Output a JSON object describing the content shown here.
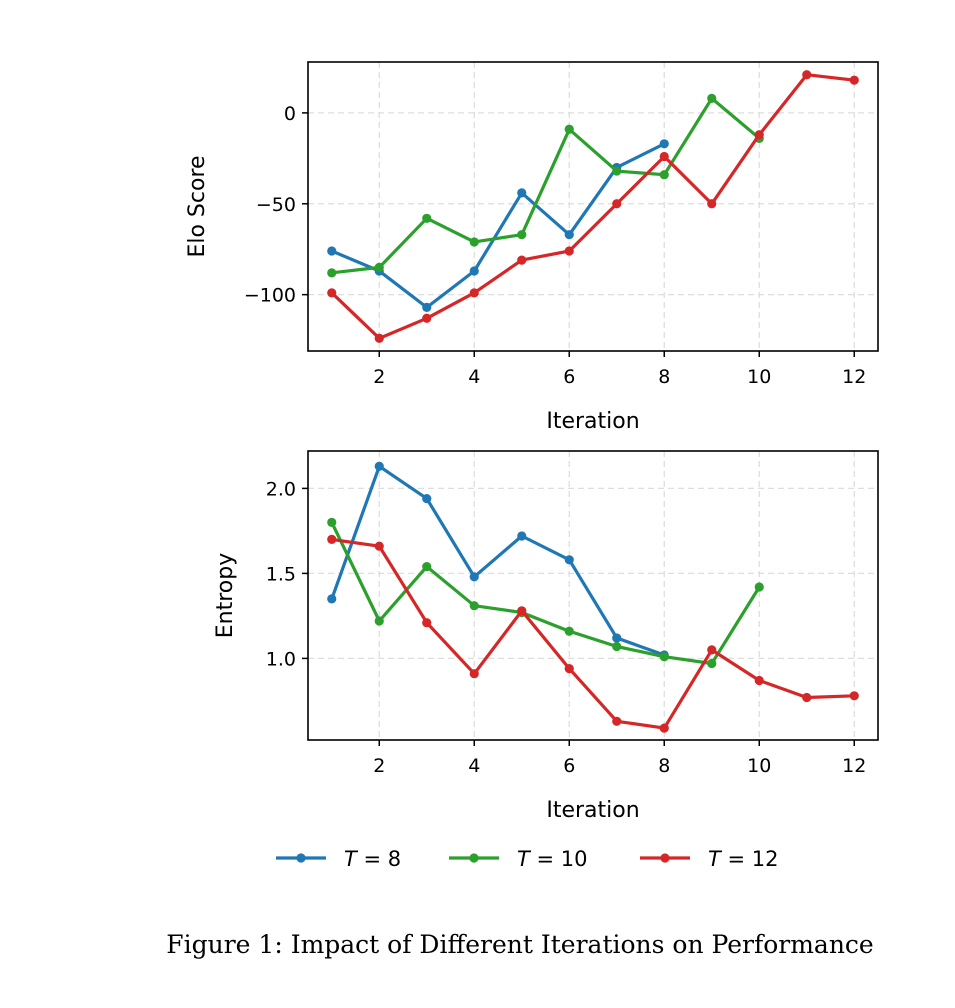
{
  "caption": "Figure 1: Impact of Different Iterations on Performance",
  "colors": {
    "T8": "#1f77b4",
    "T10": "#2ca02c",
    "T12": "#d62728"
  },
  "legend": [
    {
      "symbol": "T",
      "text": " = 8",
      "color": "#1f77b4"
    },
    {
      "symbol": "T",
      "text": " = 10",
      "color": "#2ca02c"
    },
    {
      "symbol": "T",
      "text": " = 12",
      "color": "#d62728"
    }
  ],
  "chart_data": [
    {
      "type": "line",
      "title": "",
      "xlabel": "Iteration",
      "ylabel": "Elo Score",
      "xlim": [
        0.5,
        12.5
      ],
      "ylim": [
        -131,
        28
      ],
      "xticks": [
        2,
        4,
        6,
        8,
        10,
        12
      ],
      "xtick_labels": [
        "2",
        "4",
        "6",
        "8",
        "10",
        "12"
      ],
      "yticks": [
        0,
        -50,
        -100
      ],
      "ytick_labels": [
        "0",
        "−50",
        "−100"
      ],
      "grid": true,
      "series": [
        {
          "name": "T = 8",
          "color": "#1f77b4",
          "x": [
            1,
            2,
            3,
            4,
            5,
            6,
            7,
            8
          ],
          "y": [
            -76,
            -87,
            -107,
            -87,
            -44,
            -67,
            -30,
            -17
          ]
        },
        {
          "name": "T = 10",
          "color": "#2ca02c",
          "x": [
            1,
            2,
            3,
            4,
            5,
            6,
            7,
            8,
            9,
            10
          ],
          "y": [
            -88,
            -85,
            -58,
            -71,
            -67,
            -9,
            -32,
            -34,
            8,
            -14
          ]
        },
        {
          "name": "T = 12",
          "color": "#d62728",
          "x": [
            1,
            2,
            3,
            4,
            5,
            6,
            7,
            8,
            9,
            10,
            11,
            12
          ],
          "y": [
            -99,
            -124,
            -113,
            -99,
            -81,
            -76,
            -50,
            -24,
            -50,
            -12,
            21,
            18
          ]
        }
      ]
    },
    {
      "type": "line",
      "title": "",
      "xlabel": "Iteration",
      "ylabel": "Entropy",
      "xlim": [
        0.5,
        12.5
      ],
      "ylim": [
        0.52,
        2.22
      ],
      "xticks": [
        2,
        4,
        6,
        8,
        10,
        12
      ],
      "xtick_labels": [
        "2",
        "4",
        "6",
        "8",
        "10",
        "12"
      ],
      "yticks": [
        2.0,
        1.5,
        1.0
      ],
      "ytick_labels": [
        "2.0",
        "1.5",
        "1.0"
      ],
      "grid": true,
      "series": [
        {
          "name": "T = 8",
          "color": "#1f77b4",
          "x": [
            1,
            2,
            3,
            4,
            5,
            6,
            7,
            8
          ],
          "y": [
            1.35,
            2.13,
            1.94,
            1.48,
            1.72,
            1.58,
            1.12,
            1.02
          ]
        },
        {
          "name": "T = 10",
          "color": "#2ca02c",
          "x": [
            1,
            2,
            3,
            4,
            5,
            6,
            7,
            8,
            9,
            10
          ],
          "y": [
            1.8,
            1.22,
            1.54,
            1.31,
            1.27,
            1.16,
            1.07,
            1.01,
            0.97,
            1.42
          ]
        },
        {
          "name": "T = 12",
          "color": "#d62728",
          "x": [
            1,
            2,
            3,
            4,
            5,
            6,
            7,
            8,
            9,
            10,
            11,
            12
          ],
          "y": [
            1.7,
            1.66,
            1.21,
            0.91,
            1.28,
            0.94,
            0.63,
            0.59,
            1.05,
            0.87,
            0.77,
            0.78
          ]
        }
      ]
    }
  ]
}
